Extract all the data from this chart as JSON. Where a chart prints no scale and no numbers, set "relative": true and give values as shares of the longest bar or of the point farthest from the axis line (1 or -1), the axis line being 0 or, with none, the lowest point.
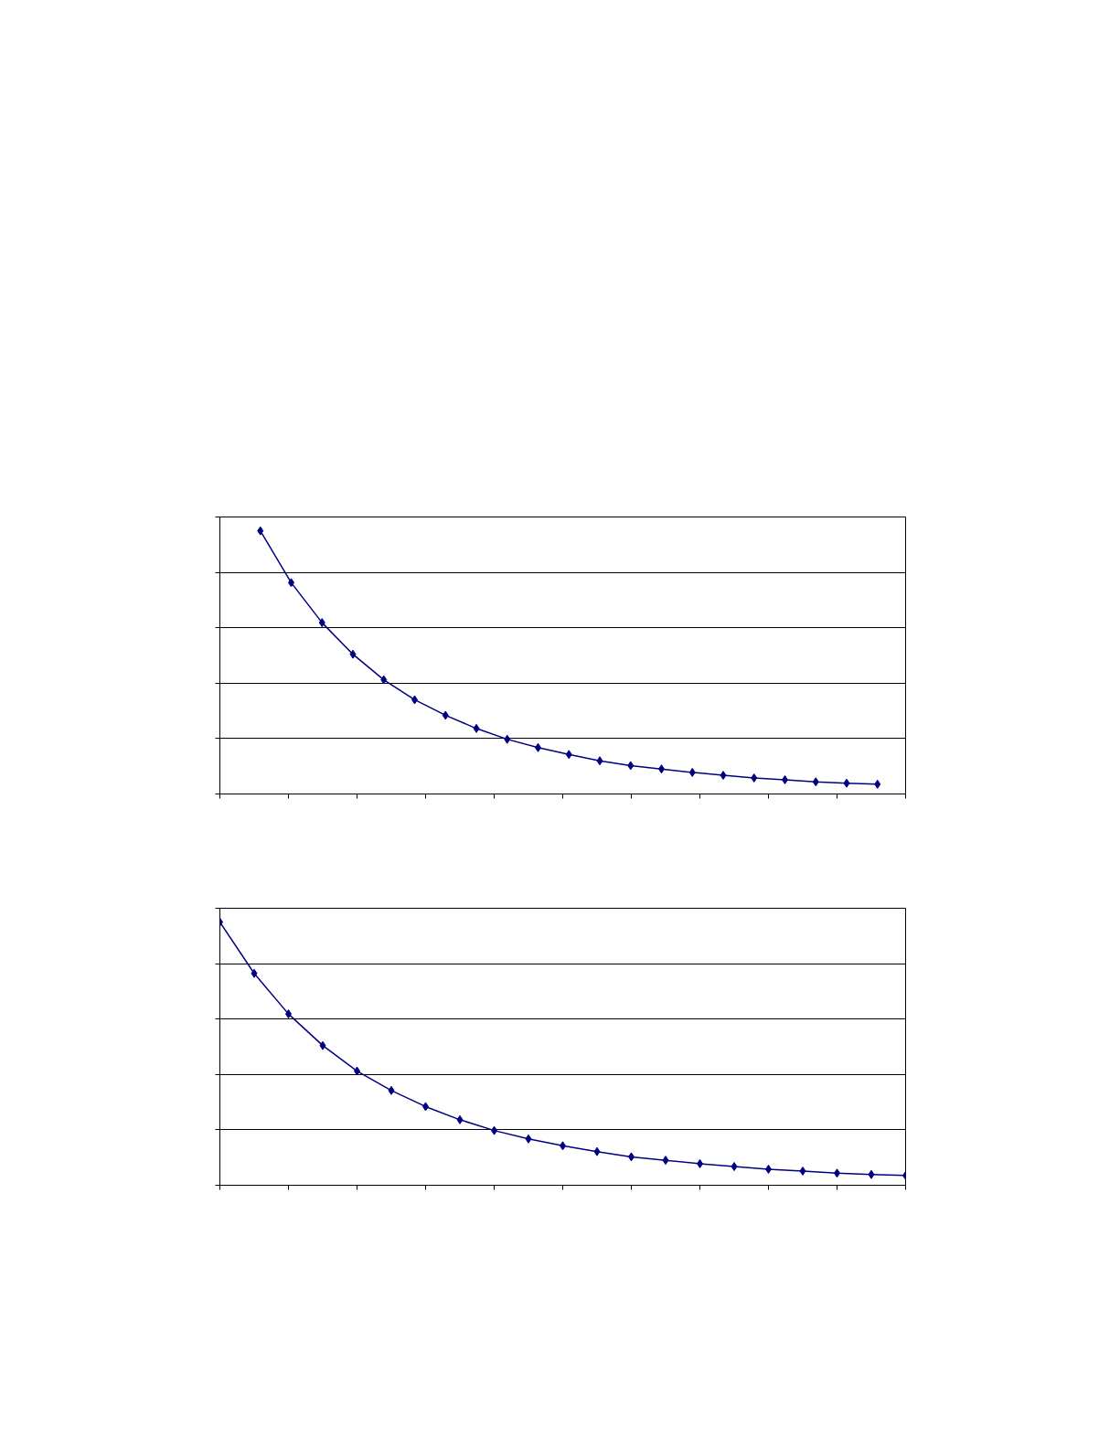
{
  "chart_data": [
    {
      "type": "line",
      "relative": true,
      "grid": "y",
      "marker": "diamond",
      "line_style": "solid",
      "categories": [
        null,
        null,
        null,
        null,
        null,
        null,
        null,
        null,
        null,
        null,
        null,
        null,
        null,
        null,
        null,
        null,
        null,
        null,
        null,
        null,
        null
      ],
      "series": [
        {
          "color": "#000080",
          "values": [
            1,
            0.803,
            0.651,
            0.531,
            0.434,
            0.358,
            0.299,
            0.249,
            0.208,
            0.176,
            0.15,
            0.126,
            0.108,
            0.095,
            0.082,
            0.071,
            0.061,
            0.054,
            0.046,
            0.041,
            0.037
          ]
        }
      ]
    },
    {
      "type": "line",
      "relative": true,
      "grid": "y",
      "marker": "diamond",
      "line_style": "solid",
      "categories": [
        null,
        null,
        null,
        null,
        null,
        null,
        null,
        null,
        null,
        null,
        null,
        null,
        null,
        null,
        null,
        null,
        null,
        null,
        null,
        null,
        null
      ],
      "series": [
        {
          "color": "#000080",
          "values": [
            1,
            0.805,
            0.651,
            0.531,
            0.434,
            0.36,
            0.299,
            0.249,
            0.208,
            0.176,
            0.15,
            0.128,
            0.108,
            0.095,
            0.082,
            0.071,
            0.061,
            0.054,
            0.046,
            0.041,
            0.037
          ]
        }
      ]
    }
  ]
}
